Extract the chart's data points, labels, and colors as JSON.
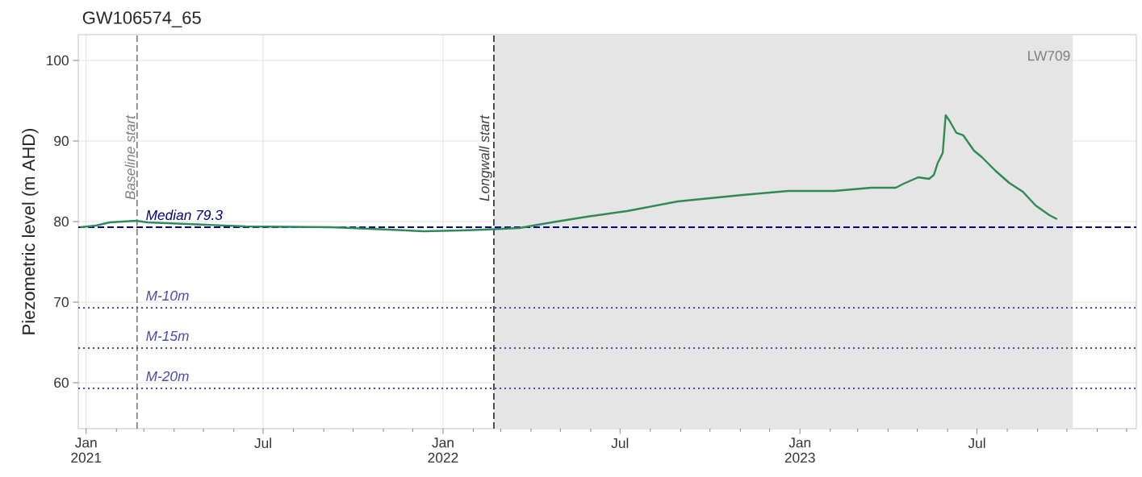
{
  "chart_data": {
    "type": "line",
    "title": "GW106574_65",
    "ylabel": "Piezometric level (m AHD)",
    "xlim": [
      "2020-12-24",
      "2023-12-11"
    ],
    "ylim": [
      54.3,
      103.2
    ],
    "yticks": [
      60,
      70,
      80,
      90,
      100
    ],
    "xticks": [
      {
        "value": "2021-01-01",
        "label": "Jan 2021"
      },
      {
        "value": "2021-07-01",
        "label": "Jul"
      },
      {
        "value": "2022-01-01",
        "label": "Jan 2022"
      },
      {
        "value": "2022-07-01",
        "label": "Jul"
      },
      {
        "value": "2023-01-01",
        "label": "Jan 2023"
      },
      {
        "value": "2023-07-01",
        "label": "Jul"
      },
      {
        "value": "2021-02-01",
        "label": null
      },
      {
        "value": "2021-03-01",
        "label": null
      },
      {
        "value": "2021-04-01",
        "label": null
      },
      {
        "value": "2021-05-01",
        "label": null
      },
      {
        "value": "2021-06-01",
        "label": null
      },
      {
        "value": "2021-08-01",
        "label": null
      },
      {
        "value": "2021-09-01",
        "label": null
      },
      {
        "value": "2021-10-01",
        "label": null
      },
      {
        "value": "2021-11-01",
        "label": null
      },
      {
        "value": "2021-12-01",
        "label": null
      },
      {
        "value": "2022-02-01",
        "label": null
      },
      {
        "value": "2022-03-01",
        "label": null
      },
      {
        "value": "2022-04-01",
        "label": null
      },
      {
        "value": "2022-05-01",
        "label": null
      },
      {
        "value": "2022-06-01",
        "label": null
      },
      {
        "value": "2022-08-01",
        "label": null
      },
      {
        "value": "2022-09-01",
        "label": null
      },
      {
        "value": "2022-10-01",
        "label": null
      },
      {
        "value": "2022-11-01",
        "label": null
      },
      {
        "value": "2022-12-01",
        "label": null
      },
      {
        "value": "2023-02-01",
        "label": null
      },
      {
        "value": "2023-03-01",
        "label": null
      },
      {
        "value": "2023-04-01",
        "label": null
      },
      {
        "value": "2023-05-01",
        "label": null
      },
      {
        "value": "2023-06-01",
        "label": null
      },
      {
        "value": "2023-08-01",
        "label": null
      },
      {
        "value": "2023-09-01",
        "label": null
      },
      {
        "value": "2023-10-01",
        "label": null
      },
      {
        "value": "2023-11-01",
        "label": null
      },
      {
        "value": "2023-12-01",
        "label": null
      }
    ],
    "grid": true,
    "marker": "none",
    "line_style": "solid",
    "series": [
      {
        "color": "#2e8b57",
        "x": [
          "2020-12-26",
          "2021-01-11",
          "2021-01-25",
          "2021-02-21",
          "2021-03-05",
          "2021-06-13",
          "2021-09-09",
          "2021-11-07",
          "2021-12-12",
          "2022-01-19",
          "2022-02-12",
          "2022-03-20",
          "2022-04-22",
          "2022-05-28",
          "2022-07-08",
          "2022-08-29",
          "2022-11-03",
          "2022-12-20",
          "2023-02-05",
          "2023-03-15",
          "2023-04-09",
          "2023-04-17",
          "2023-05-02",
          "2023-05-13",
          "2023-05-18",
          "2023-05-22",
          "2023-05-27",
          "2023-05-30",
          "2023-06-03",
          "2023-06-10",
          "2023-06-17",
          "2023-06-28",
          "2023-07-06",
          "2023-07-20",
          "2023-08-03",
          "2023-08-17",
          "2023-08-30",
          "2023-09-13",
          "2023-09-21"
        ],
        "values": [
          79.3,
          79.5,
          79.9,
          80.1,
          79.9,
          79.4,
          79.3,
          79.0,
          78.8,
          78.9,
          79.0,
          79.2,
          79.9,
          80.6,
          81.3,
          82.5,
          83.3,
          83.8,
          83.8,
          84.2,
          84.2,
          84.7,
          85.5,
          85.3,
          85.8,
          87.3,
          88.5,
          93.2,
          92.5,
          91.0,
          90.7,
          88.8,
          88.0,
          86.3,
          84.8,
          83.7,
          82.0,
          80.8,
          80.3
        ]
      }
    ],
    "ref_lines": [
      {
        "axis": "x",
        "value": "2021-02-22",
        "label": "Baseline start",
        "color": "#808080",
        "line_style": "dashed"
      },
      {
        "axis": "x",
        "value": "2022-02-22",
        "label": "Longwall start",
        "color": "#404040",
        "line_style": "dashed"
      },
      {
        "axis": "y",
        "value": 79.3,
        "label": "Median 79.3",
        "color": "#00008b",
        "line_style": "dashed"
      },
      {
        "axis": "y",
        "value": 69.3,
        "label": "M-10m",
        "color": "#4a4aad",
        "line_style": "dotted"
      },
      {
        "axis": "y",
        "value": 64.3,
        "label": "M-15m",
        "color": "#4a4aad",
        "line_style": "dotted"
      },
      {
        "axis": "y",
        "value": 59.3,
        "label": "M-20m",
        "color": "#4a4aad",
        "line_style": "dotted"
      }
    ],
    "bands": [
      {
        "axis": "x",
        "from": "2022-02-22",
        "to": "2023-10-07",
        "label": "LW709",
        "color": "#e5e5e5"
      }
    ]
  }
}
